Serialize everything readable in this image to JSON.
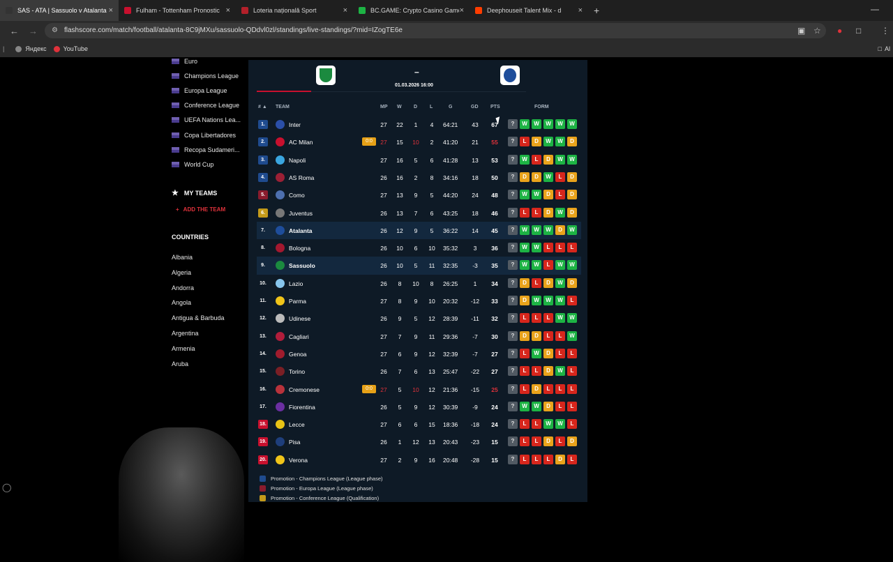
{
  "browser": {
    "tabs": [
      {
        "title": "SAS - ATA | Sassuolo v Atalanta",
        "color": "#333",
        "active": true
      },
      {
        "title": "Fulham - Tottenham Pronostic",
        "color": "#c8102e",
        "active": false
      },
      {
        "title": "Loteria națională Sport",
        "color": "#b3202a",
        "active": false
      },
      {
        "title": "BC.GAME: Crypto Casino Game",
        "color": "#1db344",
        "active": false
      },
      {
        "title": "Deephouseit Talent Mix - d",
        "color": "#ff3d00",
        "active": false
      }
    ],
    "url": "flashscore.com/match/football/atalanta-8C9jMXu/sassuolo-QDdvl0zl/standings/live-standings/?mid=IZogTE6e",
    "bookmarks": [
      "Яндекс",
      "YouTube"
    ],
    "bookmarks_right": "Al"
  },
  "sidebar": {
    "competitions": [
      "Euro",
      "Champions League",
      "Europa League",
      "Conference League",
      "UEFA Nations Lea...",
      "Copa Libertadores",
      "Recopa Sudameri...",
      "World Cup"
    ],
    "my_teams": "MY TEAMS",
    "add_team": "ADD THE TEAM",
    "countries_heading": "COUNTRIES",
    "countries": [
      "Albania",
      "Algeria",
      "Andorra",
      "Angola",
      "Antigua & Barbuda",
      "Argentina",
      "Armenia",
      "Aruba"
    ]
  },
  "match": {
    "score": "–",
    "date": "01.03.2026 16:00"
  },
  "table": {
    "headers": {
      "rank": "# ▲",
      "team": "TEAM",
      "mp": "MP",
      "w": "W",
      "d": "D",
      "l": "L",
      "g": "G",
      "gd": "GD",
      "pts": "PTS",
      "form": "FORM"
    },
    "rows": [
      {
        "rank": "1.",
        "team": "Inter",
        "mp": "27",
        "w": "22",
        "d": "1",
        "l": "4",
        "g": "64:21",
        "gd": "43",
        "pts": "67",
        "form": [
          "?",
          "W",
          "W",
          "W",
          "W",
          "W"
        ],
        "zone": "cl",
        "logo": "#2b4fa8"
      },
      {
        "rank": "2.",
        "team": "AC Milan",
        "live": "0:0",
        "mp": "27",
        "w": "15",
        "d": "10",
        "l": "2",
        "g": "41:20",
        "gd": "21",
        "pts": "55",
        "form": [
          "?",
          "L",
          "D",
          "W",
          "W",
          "D"
        ],
        "zone": "cl",
        "logo": "#c8102e",
        "live_row": true
      },
      {
        "rank": "3.",
        "team": "Napoli",
        "mp": "27",
        "w": "16",
        "d": "5",
        "l": "6",
        "g": "41:28",
        "gd": "13",
        "pts": "53",
        "form": [
          "?",
          "W",
          "L",
          "D",
          "W",
          "W"
        ],
        "zone": "cl",
        "logo": "#3aa6e0"
      },
      {
        "rank": "4.",
        "team": "AS Roma",
        "mp": "26",
        "w": "16",
        "d": "2",
        "l": "8",
        "g": "34:16",
        "gd": "18",
        "pts": "50",
        "form": [
          "?",
          "D",
          "D",
          "W",
          "L",
          "D"
        ],
        "zone": "cl",
        "logo": "#9b2035"
      },
      {
        "rank": "5.",
        "team": "Como",
        "mp": "27",
        "w": "13",
        "d": "9",
        "l": "5",
        "g": "44:20",
        "gd": "24",
        "pts": "48",
        "form": [
          "?",
          "W",
          "W",
          "D",
          "L",
          "D"
        ],
        "zone": "el",
        "logo": "#4d6fae"
      },
      {
        "rank": "6.",
        "team": "Juventus",
        "mp": "26",
        "w": "13",
        "d": "7",
        "l": "6",
        "g": "43:25",
        "gd": "18",
        "pts": "46",
        "form": [
          "?",
          "L",
          "L",
          "D",
          "W",
          "D"
        ],
        "zone": "conf",
        "logo": "#777"
      },
      {
        "rank": "7.",
        "team": "Atalanta",
        "mp": "26",
        "w": "12",
        "d": "9",
        "l": "5",
        "g": "36:22",
        "gd": "14",
        "pts": "45",
        "form": [
          "?",
          "W",
          "W",
          "W",
          "D",
          "W"
        ],
        "zone": "none",
        "logo": "#1e4d9b",
        "highlight": true
      },
      {
        "rank": "8.",
        "team": "Bologna",
        "mp": "26",
        "w": "10",
        "d": "6",
        "l": "10",
        "g": "35:32",
        "gd": "3",
        "pts": "36",
        "form": [
          "?",
          "W",
          "W",
          "L",
          "L",
          "L"
        ],
        "zone": "none",
        "logo": "#a3182f"
      },
      {
        "rank": "9.",
        "team": "Sassuolo",
        "mp": "26",
        "w": "10",
        "d": "5",
        "l": "11",
        "g": "32:35",
        "gd": "-3",
        "pts": "35",
        "form": [
          "?",
          "W",
          "W",
          "L",
          "W",
          "W"
        ],
        "zone": "none",
        "logo": "#1b8a3f",
        "highlight": true
      },
      {
        "rank": "10.",
        "team": "Lazio",
        "mp": "26",
        "w": "8",
        "d": "10",
        "l": "8",
        "g": "26:25",
        "gd": "1",
        "pts": "34",
        "form": [
          "?",
          "D",
          "L",
          "D",
          "W",
          "D"
        ],
        "zone": "none",
        "logo": "#87c5ec"
      },
      {
        "rank": "11.",
        "team": "Parma",
        "mp": "27",
        "w": "8",
        "d": "9",
        "l": "10",
        "g": "20:32",
        "gd": "-12",
        "pts": "33",
        "form": [
          "?",
          "D",
          "W",
          "W",
          "W",
          "L"
        ],
        "zone": "none",
        "logo": "#f0c419"
      },
      {
        "rank": "12.",
        "team": "Udinese",
        "mp": "26",
        "w": "9",
        "d": "5",
        "l": "12",
        "g": "28:39",
        "gd": "-11",
        "pts": "32",
        "form": [
          "?",
          "L",
          "L",
          "L",
          "W",
          "W"
        ],
        "zone": "none",
        "logo": "#bbbbbb"
      },
      {
        "rank": "13.",
        "team": "Cagliari",
        "mp": "27",
        "w": "7",
        "d": "9",
        "l": "11",
        "g": "29:36",
        "gd": "-7",
        "pts": "30",
        "form": [
          "?",
          "D",
          "D",
          "L",
          "L",
          "W"
        ],
        "zone": "none",
        "logo": "#b11d3b"
      },
      {
        "rank": "14.",
        "team": "Genoa",
        "mp": "27",
        "w": "6",
        "d": "9",
        "l": "12",
        "g": "32:39",
        "gd": "-7",
        "pts": "27",
        "form": [
          "?",
          "L",
          "W",
          "D",
          "L",
          "L"
        ],
        "zone": "none",
        "logo": "#a01c2d"
      },
      {
        "rank": "15.",
        "team": "Torino",
        "mp": "26",
        "w": "7",
        "d": "6",
        "l": "13",
        "g": "25:47",
        "gd": "-22",
        "pts": "27",
        "form": [
          "?",
          "L",
          "L",
          "D",
          "W",
          "L"
        ],
        "zone": "none",
        "logo": "#7a1f25"
      },
      {
        "rank": "16.",
        "team": "Cremonese",
        "live": "0:0",
        "mp": "27",
        "w": "5",
        "d": "10",
        "l": "12",
        "g": "21:36",
        "gd": "-15",
        "pts": "25",
        "form": [
          "?",
          "L",
          "D",
          "L",
          "L",
          "L"
        ],
        "zone": "none",
        "logo": "#b8323b",
        "live_row": true
      },
      {
        "rank": "17.",
        "team": "Fiorentina",
        "mp": "26",
        "w": "5",
        "d": "9",
        "l": "12",
        "g": "30:39",
        "gd": "-9",
        "pts": "24",
        "form": [
          "?",
          "W",
          "W",
          "D",
          "L",
          "L"
        ],
        "zone": "none",
        "logo": "#6b2fa1"
      },
      {
        "rank": "18.",
        "team": "Lecce",
        "mp": "27",
        "w": "6",
        "d": "6",
        "l": "15",
        "g": "18:36",
        "gd": "-18",
        "pts": "24",
        "form": [
          "?",
          "L",
          "L",
          "W",
          "W",
          "L"
        ],
        "zone": "rel",
        "logo": "#e8c315"
      },
      {
        "rank": "19.",
        "team": "Pisa",
        "mp": "26",
        "w": "1",
        "d": "12",
        "l": "13",
        "g": "20:43",
        "gd": "-23",
        "pts": "15",
        "form": [
          "?",
          "L",
          "L",
          "D",
          "L",
          "D"
        ],
        "zone": "rel",
        "logo": "#1e3e7b"
      },
      {
        "rank": "20.",
        "team": "Verona",
        "mp": "27",
        "w": "2",
        "d": "9",
        "l": "16",
        "g": "20:48",
        "gd": "-28",
        "pts": "15",
        "form": [
          "?",
          "L",
          "L",
          "L",
          "D",
          "L"
        ],
        "zone": "rel",
        "logo": "#f0c419"
      }
    ]
  },
  "legend": [
    {
      "label": "Promotion - Champions League (League phase)",
      "color": "#1f4b8e"
    },
    {
      "label": "Promotion - Europa League (League phase)",
      "color": "#8a1b2d"
    },
    {
      "label": "Promotion - Conference League (Qualification)",
      "color": "#c49a1a"
    }
  ],
  "colors": {
    "cl": "#1f4b8e",
    "el": "#8a1b2d",
    "conf": "#c49a1a",
    "rel": "#c8102e",
    "none": "transparent"
  }
}
